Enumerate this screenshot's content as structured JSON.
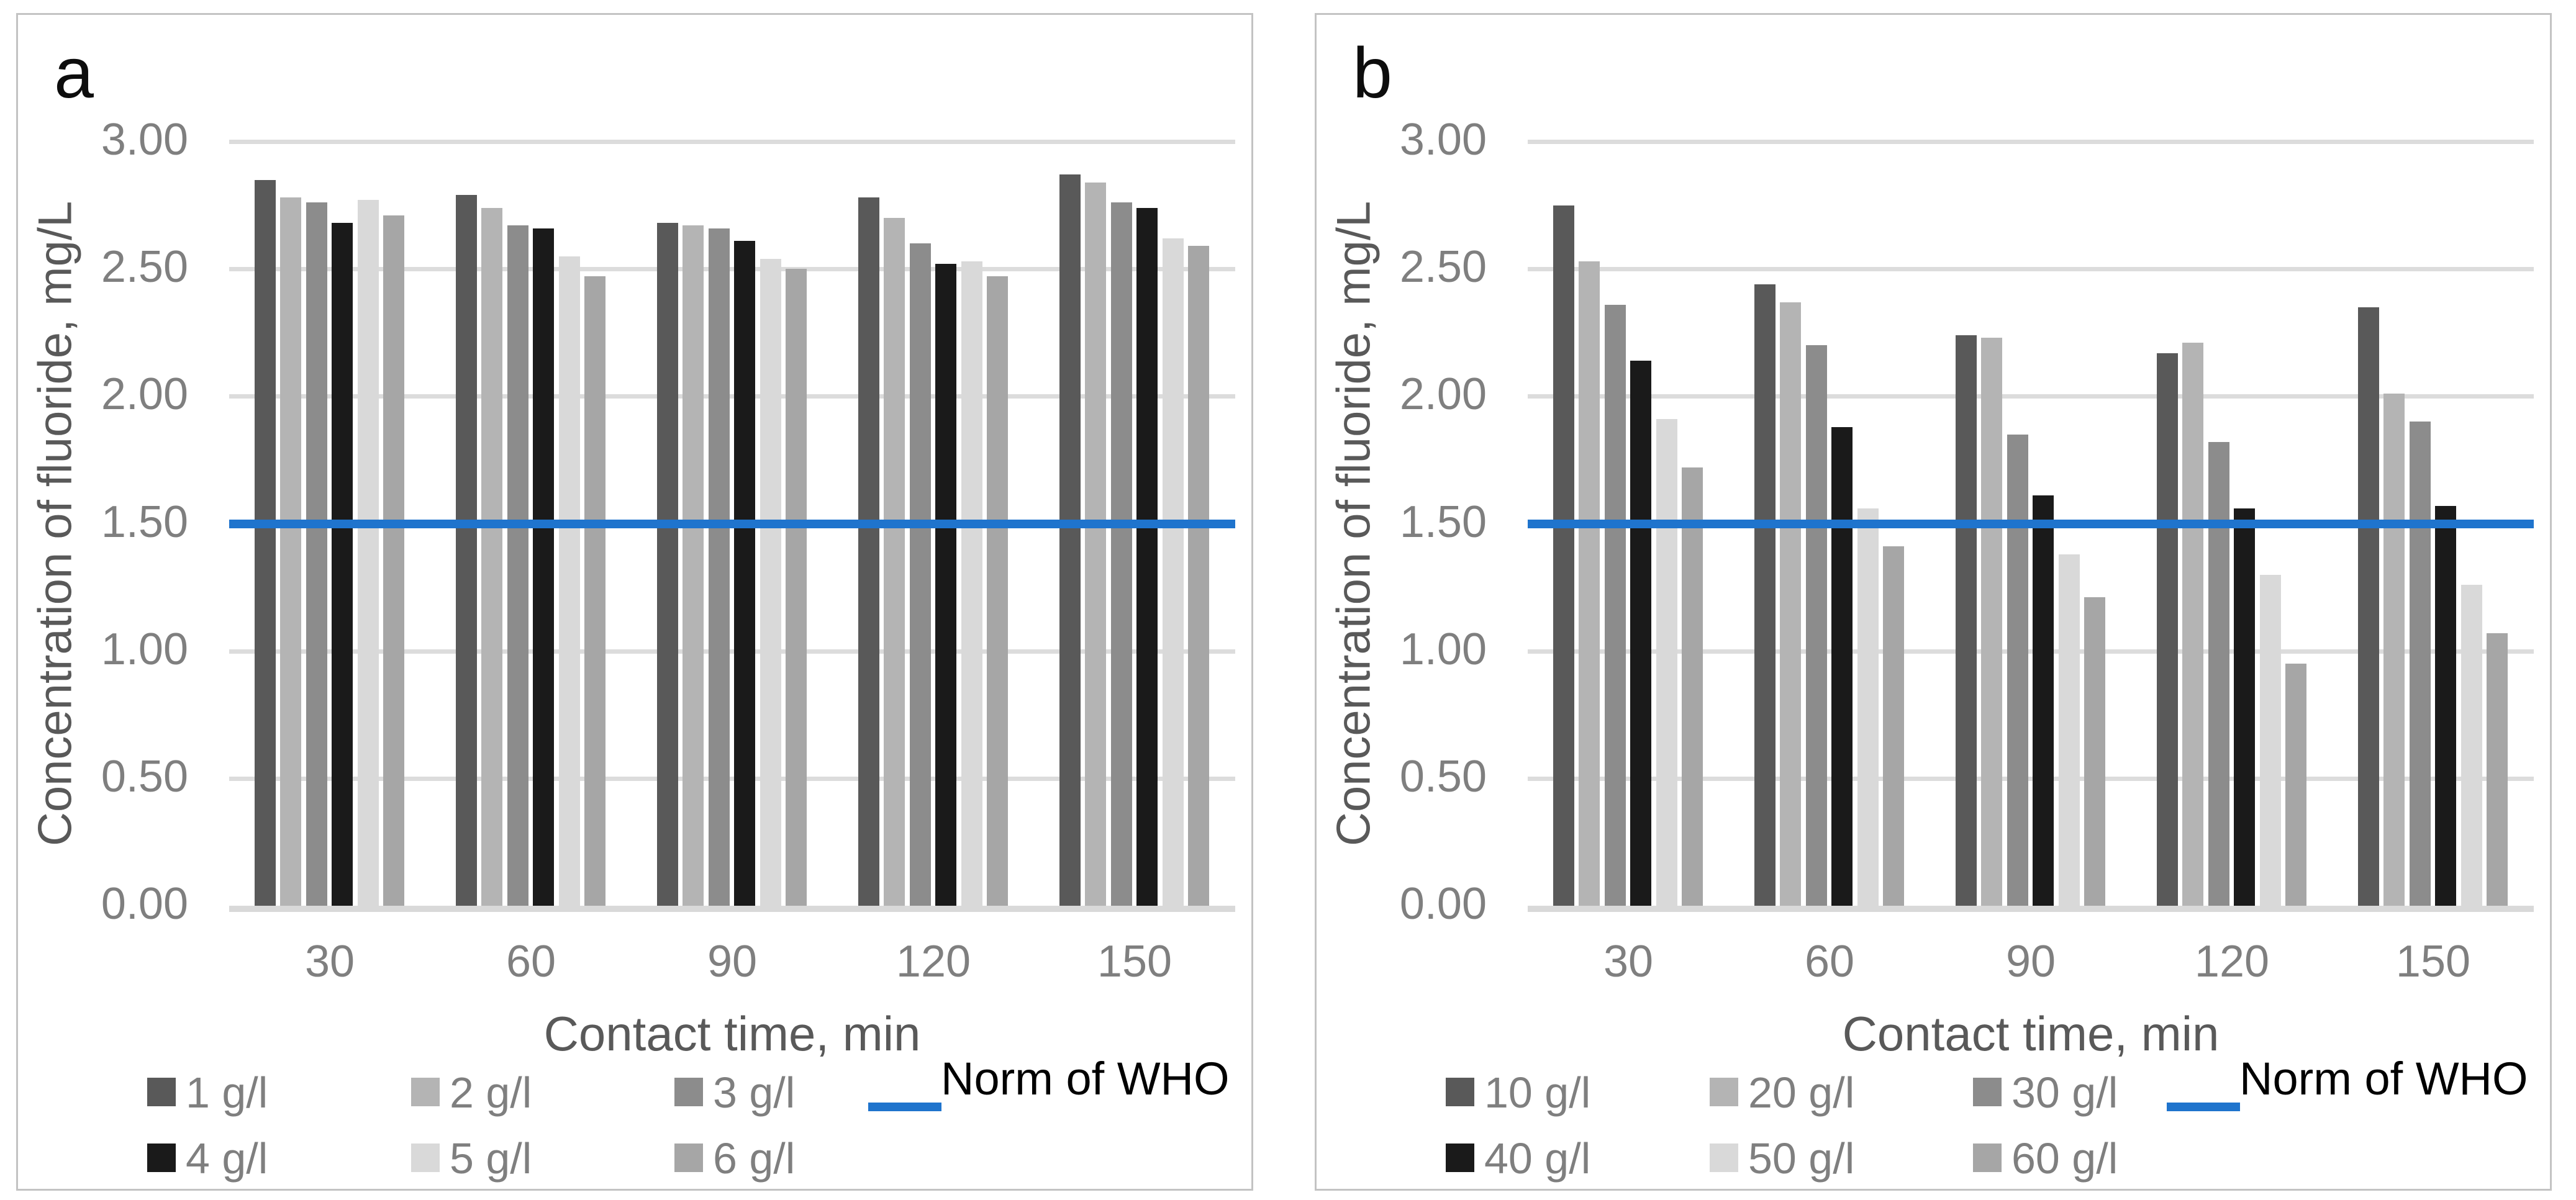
{
  "chart_data": [
    {
      "type": "bar",
      "panel_label": "a",
      "xlabel": "Contact time, min",
      "ylabel": "Concentration of fluoride, mg/L",
      "categories": [
        "30",
        "60",
        "90",
        "120",
        "150"
      ],
      "y_ticks": [
        "3.00",
        "2.50",
        "2.00",
        "1.50",
        "1.00",
        "0.50",
        "0.00"
      ],
      "ylim": [
        0,
        3
      ],
      "grid": true,
      "legend_position": "bottom",
      "series": [
        {
          "name": "1 g/l",
          "color": "#595959",
          "values": [
            2.85,
            2.79,
            2.68,
            2.78,
            2.87
          ]
        },
        {
          "name": "2 g/l",
          "color": "#b4b4b4",
          "values": [
            2.78,
            2.74,
            2.67,
            2.7,
            2.84
          ]
        },
        {
          "name": "3 g/l",
          "color": "#8c8c8c",
          "values": [
            2.76,
            2.67,
            2.66,
            2.6,
            2.76
          ]
        },
        {
          "name": "4 g/l",
          "color": "#1a1a1a",
          "values": [
            2.68,
            2.66,
            2.61,
            2.52,
            2.74
          ]
        },
        {
          "name": "5 g/l",
          "color": "#d9d9d9",
          "values": [
            2.77,
            2.55,
            2.54,
            2.53,
            2.62
          ]
        },
        {
          "name": "6 g/l",
          "color": "#a6a6a6",
          "values": [
            2.71,
            2.47,
            2.5,
            2.47,
            2.59
          ]
        }
      ],
      "ref_line": {
        "label": "Norm of WHO",
        "value": 1.5,
        "color": "#1f74cd"
      }
    },
    {
      "type": "bar",
      "panel_label": "b",
      "xlabel": "Contact time, min",
      "ylabel": "Concentration of fluoride, mg/L",
      "categories": [
        "30",
        "60",
        "90",
        "120",
        "150"
      ],
      "y_ticks": [
        "3.00",
        "2.50",
        "2.00",
        "1.50",
        "1.00",
        "0.50",
        "0.00"
      ],
      "ylim": [
        0,
        3
      ],
      "grid": true,
      "legend_position": "bottom",
      "series": [
        {
          "name": "10 g/l",
          "color": "#595959",
          "values": [
            2.75,
            2.44,
            2.24,
            2.17,
            2.35
          ]
        },
        {
          "name": "20 g/l",
          "color": "#b4b4b4",
          "values": [
            2.53,
            2.37,
            2.23,
            2.21,
            2.01
          ]
        },
        {
          "name": "30 g/l",
          "color": "#8c8c8c",
          "values": [
            2.36,
            2.2,
            1.85,
            1.82,
            1.9
          ]
        },
        {
          "name": "40 g/l",
          "color": "#1a1a1a",
          "values": [
            2.14,
            1.88,
            1.61,
            1.56,
            1.57
          ]
        },
        {
          "name": "50 g/l",
          "color": "#d9d9d9",
          "values": [
            1.91,
            1.56,
            1.38,
            1.3,
            1.26
          ]
        },
        {
          "name": "60 g/l",
          "color": "#a6a6a6",
          "values": [
            1.72,
            1.41,
            1.21,
            0.95,
            1.07
          ]
        }
      ],
      "ref_line": {
        "label": "Norm of WHO",
        "value": 1.5,
        "color": "#1f74cd"
      }
    }
  ]
}
